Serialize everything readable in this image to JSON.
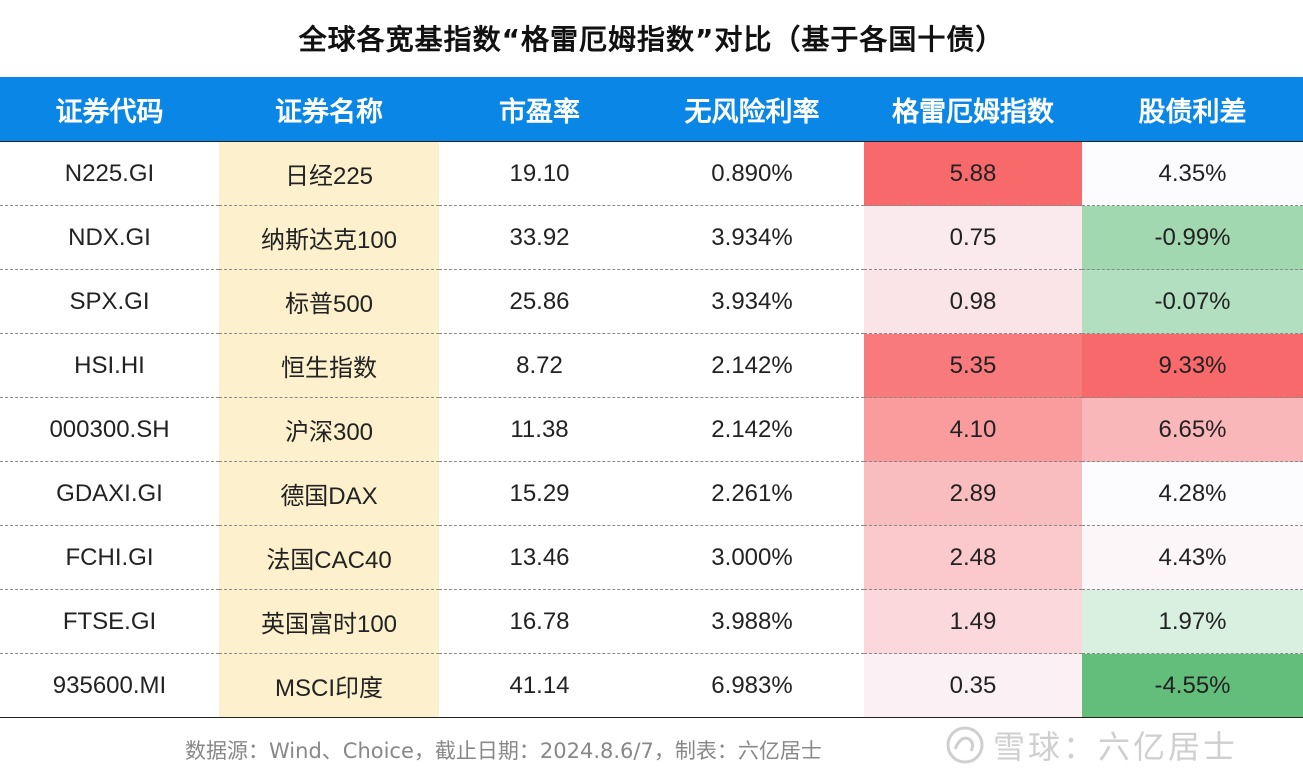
{
  "title": "全球各宽基指数“格雷厄姆指数”对比（基于各国十债）",
  "headers": [
    "证券代码",
    "证券名称",
    "市盈率",
    "无风险利率",
    "格雷厄姆指数",
    "股债利差"
  ],
  "rows": [
    {
      "code": "N225.GI",
      "name": "日经225",
      "pe": "19.10",
      "rf": "0.890%",
      "graham": "5.88",
      "spread": "4.35%",
      "graham_bg": "#f8696b",
      "spread_bg": "#fcfcff"
    },
    {
      "code": "NDX.GI",
      "name": "纳斯达克100",
      "pe": "33.92",
      "rf": "3.934%",
      "graham": "0.75",
      "spread": "-0.99%",
      "graham_bg": "#fbeaed",
      "spread_bg": "#a1d8b0"
    },
    {
      "code": "SPX.GI",
      "name": "标普500",
      "pe": "25.86",
      "rf": "3.934%",
      "graham": "0.98",
      "spread": "-0.07%",
      "graham_bg": "#fbe4e7",
      "spread_bg": "#b2dfbf"
    },
    {
      "code": "HSI.HI",
      "name": "恒生指数",
      "pe": "8.72",
      "rf": "2.142%",
      "graham": "5.35",
      "spread": "9.33%",
      "graham_bg": "#f97a7c",
      "spread_bg": "#f8696b"
    },
    {
      "code": "000300.SH",
      "name": "沪深300",
      "pe": "11.38",
      "rf": "2.142%",
      "graham": "4.10",
      "spread": "6.65%",
      "graham_bg": "#fa9c9e",
      "spread_bg": "#fab7b9"
    },
    {
      "code": "GDAXI.GI",
      "name": "德国DAX",
      "pe": "15.29",
      "rf": "2.261%",
      "graham": "2.89",
      "spread": "4.28%",
      "graham_bg": "#fabdbf",
      "spread_bg": "#fcfcff"
    },
    {
      "code": "FCHI.GI",
      "name": "法国CAC40",
      "pe": "13.46",
      "rf": "3.000%",
      "graham": "2.48",
      "spread": "4.43%",
      "graham_bg": "#fbc8cb",
      "spread_bg": "#fcf6f9"
    },
    {
      "code": "FTSE.GI",
      "name": "英国富时100",
      "pe": "16.78",
      "rf": "3.988%",
      "graham": "1.49",
      "spread": "1.97%",
      "graham_bg": "#fbd8db",
      "spread_bg": "#d9efe0"
    },
    {
      "code": "935600.MI",
      "name": "MSCI印度",
      "pe": "41.14",
      "rf": "6.983%",
      "graham": "0.35",
      "spread": "-4.55%",
      "graham_bg": "#fbf0f3",
      "spread_bg": "#63be7b"
    }
  ],
  "name_column_bg": "#fdf0cc",
  "header_bg": "#0a87e6",
  "footer": "数据源：Wind、Choice，截止日期：2024.8.6/7，制表：六亿居士",
  "watermark": "雪球：六亿居士",
  "watermark_icon": "snowball-logo-icon"
}
